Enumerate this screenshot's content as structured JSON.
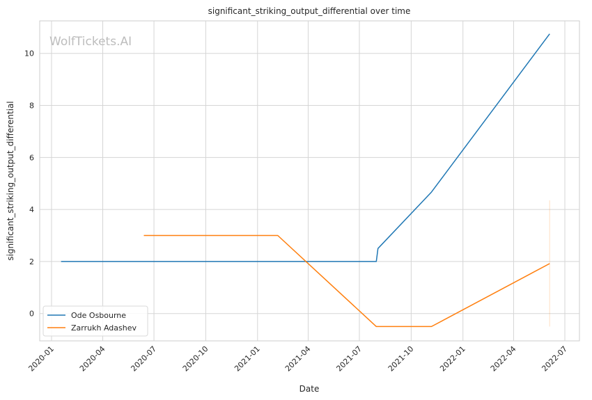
{
  "chart_data": {
    "type": "line",
    "title": "significant_striking_output_differential over time",
    "xlabel": "Date",
    "ylabel": "significant_striking_output_differential",
    "watermark": "WolfTickets.AI",
    "x_ticks": [
      "2020-01",
      "2020-04",
      "2020-07",
      "2020-10",
      "2021-01",
      "2021-04",
      "2021-07",
      "2021-10",
      "2022-01",
      "2022-04",
      "2022-07"
    ],
    "y_ticks": [
      "0",
      "2",
      "4",
      "6",
      "8",
      "10"
    ],
    "xlim": [
      "2019-12-11",
      "2022-07-27"
    ],
    "ylim": [
      -1.05,
      11.25
    ],
    "grid": true,
    "legend_position": "lower-left",
    "series": [
      {
        "name": "Ode Osbourne",
        "color": "#1f77b4",
        "points": [
          {
            "x": "2020-01-18",
            "y": 2.0
          },
          {
            "x": "2021-07-31",
            "y": 2.0
          },
          {
            "x": "2021-08-03",
            "y": 2.5
          },
          {
            "x": "2021-11-06",
            "y": 4.67
          },
          {
            "x": "2022-06-04",
            "y": 10.75
          }
        ]
      },
      {
        "name": "Zarrukh Adashev",
        "color": "#ff7f0e",
        "points": [
          {
            "x": "2020-06-13",
            "y": 3.0
          },
          {
            "x": "2021-02-06",
            "y": 3.0
          },
          {
            "x": "2021-07-31",
            "y": -0.5
          },
          {
            "x": "2021-11-06",
            "y": -0.5
          },
          {
            "x": "2022-06-04",
            "y": 1.92
          }
        ],
        "error_band": {
          "x": "2022-06-04",
          "low": -0.5,
          "high": 4.35
        }
      }
    ]
  }
}
